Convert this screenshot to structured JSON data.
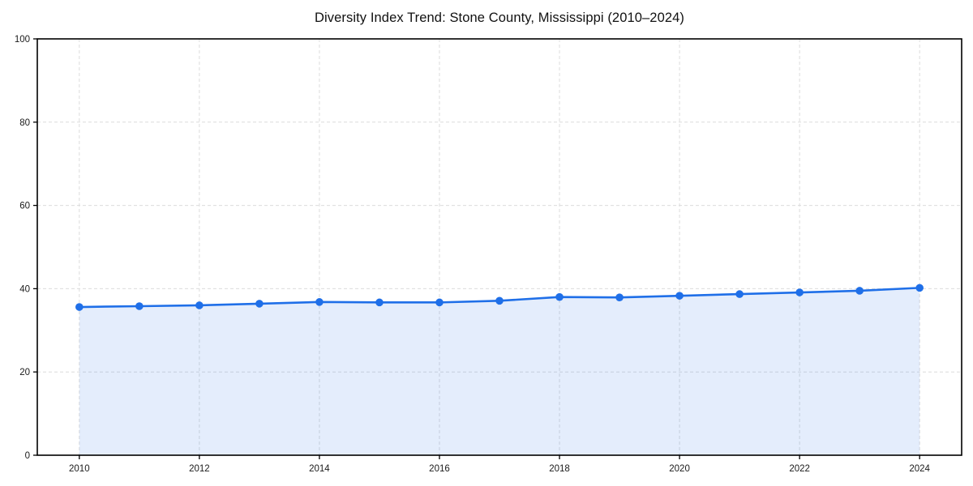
{
  "chart_data": {
    "type": "line",
    "title": "Diversity Index Trend: Stone County, Mississippi (2010–2024)",
    "x": [
      2010,
      2011,
      2012,
      2013,
      2014,
      2015,
      2016,
      2017,
      2018,
      2019,
      2020,
      2021,
      2022,
      2023,
      2024
    ],
    "series": [
      {
        "name": "Diversity Index",
        "values": [
          35.6,
          35.8,
          36.0,
          36.4,
          36.8,
          36.7,
          36.7,
          37.1,
          38.0,
          37.9,
          38.3,
          38.7,
          39.1,
          39.5,
          40.2
        ]
      }
    ],
    "xlabel": "",
    "ylabel": "",
    "xticks": [
      2010,
      2012,
      2014,
      2016,
      2018,
      2020,
      2022,
      2024
    ],
    "yticks": [
      0,
      20,
      40,
      60,
      80,
      100
    ],
    "xlim": [
      2009.3,
      2024.7
    ],
    "ylim": [
      0,
      100
    ],
    "grid": true,
    "grid_style": "dashed",
    "legend": false,
    "area_fill": true,
    "styles": {
      "line_color": "#1f6fe8",
      "marker_color": "#1f6fe8",
      "fill_color": "#1f6fe8",
      "fill_opacity": "0.12",
      "grid_color": "#dcdcdc",
      "axis_color": "#000000",
      "tick_label_color": "#1a1a1a",
      "background": "#ffffff"
    }
  }
}
